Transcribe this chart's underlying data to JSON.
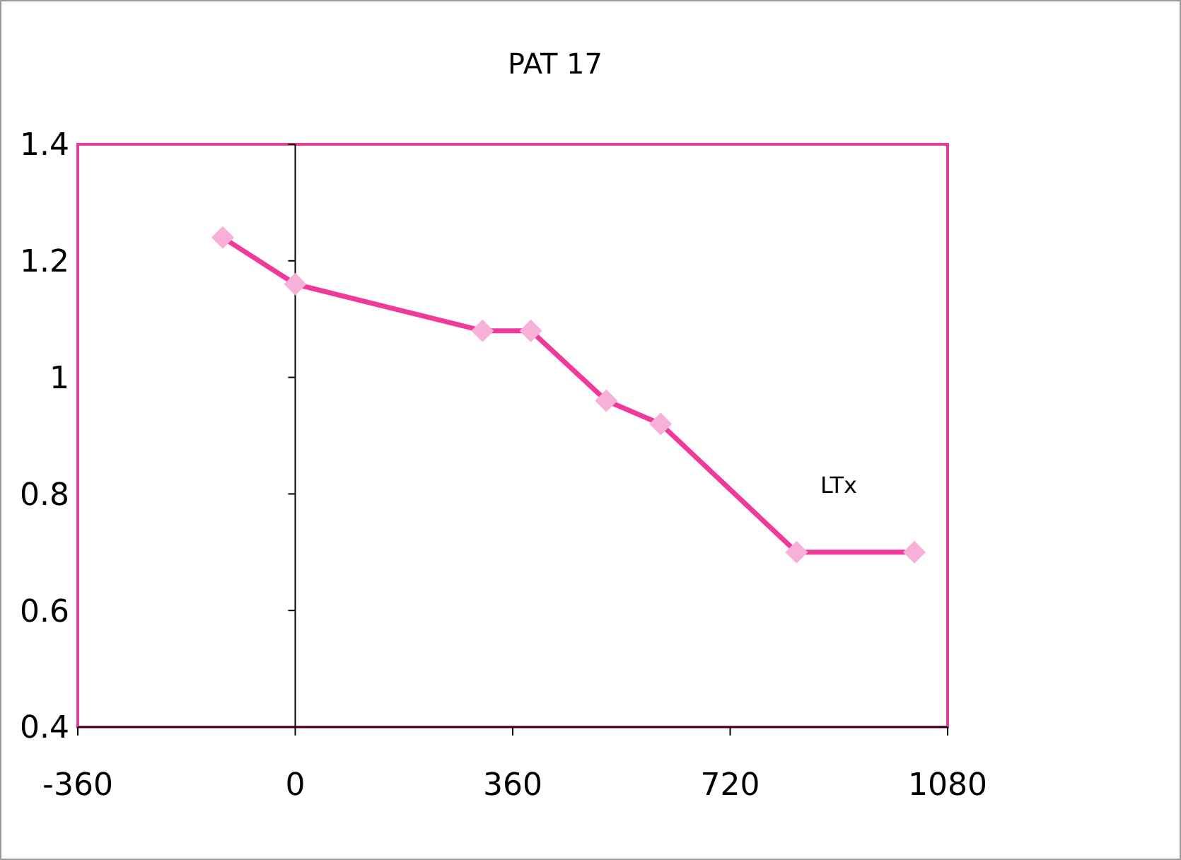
{
  "chart_data": {
    "type": "line",
    "title": "PAT 17",
    "x": [
      -120,
      0,
      310,
      390,
      515,
      605,
      830,
      1025
    ],
    "series": [
      {
        "color": "#f0399a",
        "values": [
          1.24,
          1.16,
          1.08,
          1.08,
          0.96,
          0.92,
          0.7,
          0.7
        ]
      }
    ],
    "marker": "diamond",
    "xlim": [
      -360,
      1080
    ],
    "xticks": [
      -360,
      0,
      360,
      720,
      1080
    ],
    "ylim": [
      0.4,
      1.4
    ],
    "yticks": [
      0.4,
      0.6,
      0.8,
      1,
      1.2,
      1.4
    ],
    "annotations": [
      "LTx"
    ]
  }
}
